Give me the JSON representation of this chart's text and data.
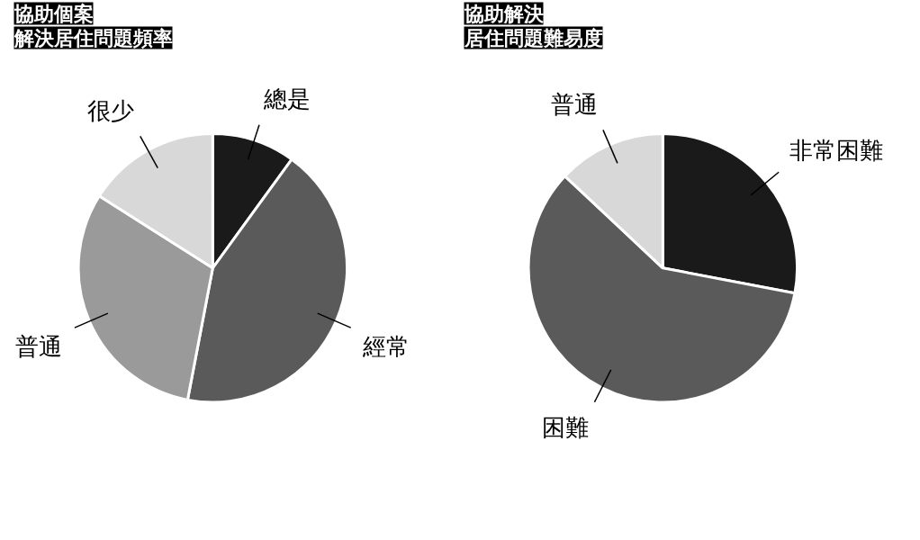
{
  "chart_data": [
    {
      "type": "pie",
      "title": "協助個案",
      "subtitle": "解決居住問題頻率",
      "categories": [
        "總是",
        "經常",
        "普通",
        "很少"
      ],
      "values": [
        10,
        43,
        31,
        16
      ],
      "colors": [
        "#1a1a1a",
        "#5a5a5a",
        "#9a9a9a",
        "#d8d8d8"
      ]
    },
    {
      "type": "pie",
      "title": "協助解決",
      "subtitle": "居住問題難易度",
      "categories": [
        "非常困難",
        "困難",
        "普通"
      ],
      "values": [
        28,
        59,
        13
      ],
      "colors": [
        "#1a1a1a",
        "#5a5a5a",
        "#d8d8d8"
      ]
    }
  ]
}
